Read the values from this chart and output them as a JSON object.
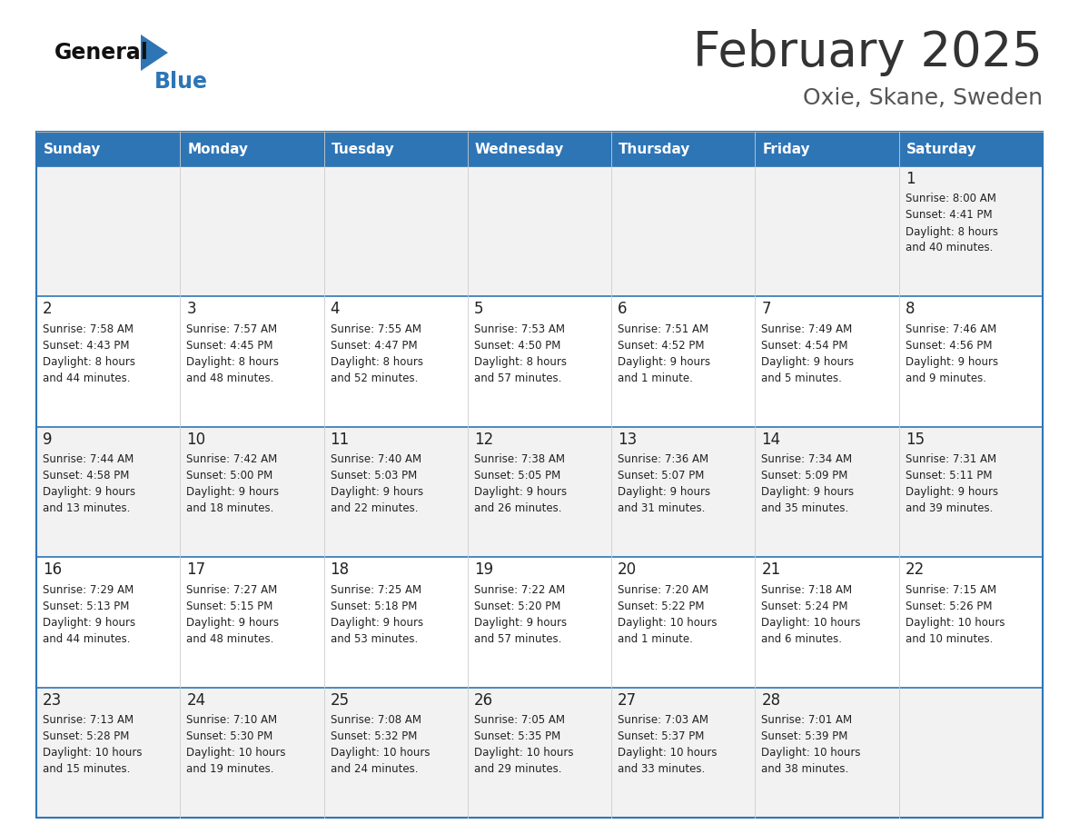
{
  "title": "February 2025",
  "subtitle": "Oxie, Skane, Sweden",
  "header_bg": "#2E75B6",
  "header_text": "#FFFFFF",
  "days_of_week": [
    "Sunday",
    "Monday",
    "Tuesday",
    "Wednesday",
    "Thursday",
    "Friday",
    "Saturday"
  ],
  "row_bg_odd": "#F2F2F2",
  "row_bg_even": "#FFFFFF",
  "cell_border": "#2E75B6",
  "day_number_color": "#222222",
  "info_text_color": "#222222",
  "logo_general_color": "#111111",
  "logo_blue_color": "#2E75B6",
  "calendar_data": [
    [
      null,
      null,
      null,
      null,
      null,
      null,
      {
        "day": 1,
        "sunrise": "8:00 AM",
        "sunset": "4:41 PM",
        "daylight": "8 hours",
        "daylight2": "and 40 minutes."
      }
    ],
    [
      {
        "day": 2,
        "sunrise": "7:58 AM",
        "sunset": "4:43 PM",
        "daylight": "8 hours",
        "daylight2": "and 44 minutes."
      },
      {
        "day": 3,
        "sunrise": "7:57 AM",
        "sunset": "4:45 PM",
        "daylight": "8 hours",
        "daylight2": "and 48 minutes."
      },
      {
        "day": 4,
        "sunrise": "7:55 AM",
        "sunset": "4:47 PM",
        "daylight": "8 hours",
        "daylight2": "and 52 minutes."
      },
      {
        "day": 5,
        "sunrise": "7:53 AM",
        "sunset": "4:50 PM",
        "daylight": "8 hours",
        "daylight2": "and 57 minutes."
      },
      {
        "day": 6,
        "sunrise": "7:51 AM",
        "sunset": "4:52 PM",
        "daylight": "9 hours",
        "daylight2": "and 1 minute."
      },
      {
        "day": 7,
        "sunrise": "7:49 AM",
        "sunset": "4:54 PM",
        "daylight": "9 hours",
        "daylight2": "and 5 minutes."
      },
      {
        "day": 8,
        "sunrise": "7:46 AM",
        "sunset": "4:56 PM",
        "daylight": "9 hours",
        "daylight2": "and 9 minutes."
      }
    ],
    [
      {
        "day": 9,
        "sunrise": "7:44 AM",
        "sunset": "4:58 PM",
        "daylight": "9 hours",
        "daylight2": "and 13 minutes."
      },
      {
        "day": 10,
        "sunrise": "7:42 AM",
        "sunset": "5:00 PM",
        "daylight": "9 hours",
        "daylight2": "and 18 minutes."
      },
      {
        "day": 11,
        "sunrise": "7:40 AM",
        "sunset": "5:03 PM",
        "daylight": "9 hours",
        "daylight2": "and 22 minutes."
      },
      {
        "day": 12,
        "sunrise": "7:38 AM",
        "sunset": "5:05 PM",
        "daylight": "9 hours",
        "daylight2": "and 26 minutes."
      },
      {
        "day": 13,
        "sunrise": "7:36 AM",
        "sunset": "5:07 PM",
        "daylight": "9 hours",
        "daylight2": "and 31 minutes."
      },
      {
        "day": 14,
        "sunrise": "7:34 AM",
        "sunset": "5:09 PM",
        "daylight": "9 hours",
        "daylight2": "and 35 minutes."
      },
      {
        "day": 15,
        "sunrise": "7:31 AM",
        "sunset": "5:11 PM",
        "daylight": "9 hours",
        "daylight2": "and 39 minutes."
      }
    ],
    [
      {
        "day": 16,
        "sunrise": "7:29 AM",
        "sunset": "5:13 PM",
        "daylight": "9 hours",
        "daylight2": "and 44 minutes."
      },
      {
        "day": 17,
        "sunrise": "7:27 AM",
        "sunset": "5:15 PM",
        "daylight": "9 hours",
        "daylight2": "and 48 minutes."
      },
      {
        "day": 18,
        "sunrise": "7:25 AM",
        "sunset": "5:18 PM",
        "daylight": "9 hours",
        "daylight2": "and 53 minutes."
      },
      {
        "day": 19,
        "sunrise": "7:22 AM",
        "sunset": "5:20 PM",
        "daylight": "9 hours",
        "daylight2": "and 57 minutes."
      },
      {
        "day": 20,
        "sunrise": "7:20 AM",
        "sunset": "5:22 PM",
        "daylight": "10 hours",
        "daylight2": "and 1 minute."
      },
      {
        "day": 21,
        "sunrise": "7:18 AM",
        "sunset": "5:24 PM",
        "daylight": "10 hours",
        "daylight2": "and 6 minutes."
      },
      {
        "day": 22,
        "sunrise": "7:15 AM",
        "sunset": "5:26 PM",
        "daylight": "10 hours",
        "daylight2": "and 10 minutes."
      }
    ],
    [
      {
        "day": 23,
        "sunrise": "7:13 AM",
        "sunset": "5:28 PM",
        "daylight": "10 hours",
        "daylight2": "and 15 minutes."
      },
      {
        "day": 24,
        "sunrise": "7:10 AM",
        "sunset": "5:30 PM",
        "daylight": "10 hours",
        "daylight2": "and 19 minutes."
      },
      {
        "day": 25,
        "sunrise": "7:08 AM",
        "sunset": "5:32 PM",
        "daylight": "10 hours",
        "daylight2": "and 24 minutes."
      },
      {
        "day": 26,
        "sunrise": "7:05 AM",
        "sunset": "5:35 PM",
        "daylight": "10 hours",
        "daylight2": "and 29 minutes."
      },
      {
        "day": 27,
        "sunrise": "7:03 AM",
        "sunset": "5:37 PM",
        "daylight": "10 hours",
        "daylight2": "and 33 minutes."
      },
      {
        "day": 28,
        "sunrise": "7:01 AM",
        "sunset": "5:39 PM",
        "daylight": "10 hours",
        "daylight2": "and 38 minutes."
      },
      null
    ]
  ]
}
